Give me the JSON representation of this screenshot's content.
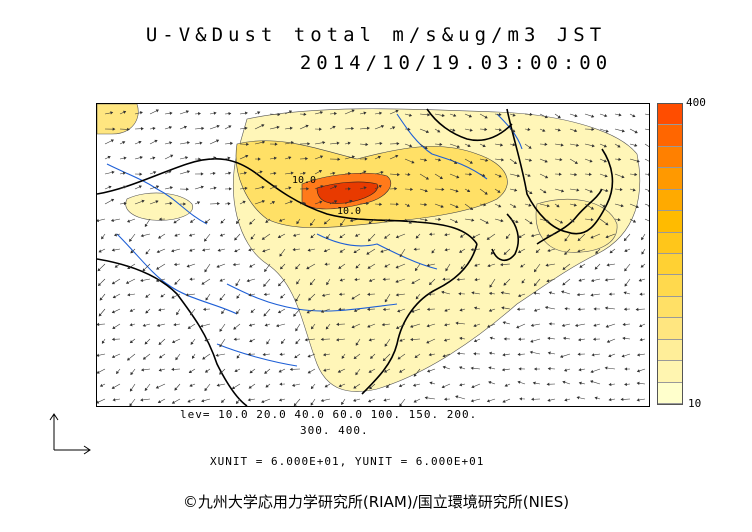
{
  "title": {
    "line1": "U-V&Dust total m/s&ug/m3 JST",
    "line2": "2014/10/19.03:00:00"
  },
  "colorbar": {
    "max_label": "400",
    "min_label": "10",
    "colors": [
      "#ffffcc",
      "#fff5b0",
      "#ffee99",
      "#ffe680",
      "#ffe066",
      "#ffd94d",
      "#ffd133",
      "#ffc61a",
      "#ffbb00",
      "#ffaa00",
      "#ff9900",
      "#ff8000",
      "#ff6600",
      "#ff4d00"
    ]
  },
  "levels": {
    "line1": "lev= 10.0 20.0 40.0 60.0 100. 150. 200.",
    "line2": "300. 400."
  },
  "units": "XUNIT = 6.000E+01, YUNIT = 6.000E+01",
  "contour_labels": [
    "10.0",
    "10.0"
  ],
  "credit": "©九州大学応用力学研究所(RIAM)/国立環境研究所(NIES)",
  "colors": {
    "coast": "#000000",
    "river": "#1e5fd6",
    "dust_low": "#fff6b8",
    "dust_mid": "#ffe066",
    "dust_high": "#ff7a1a",
    "dust_peak": "#e83a00"
  }
}
